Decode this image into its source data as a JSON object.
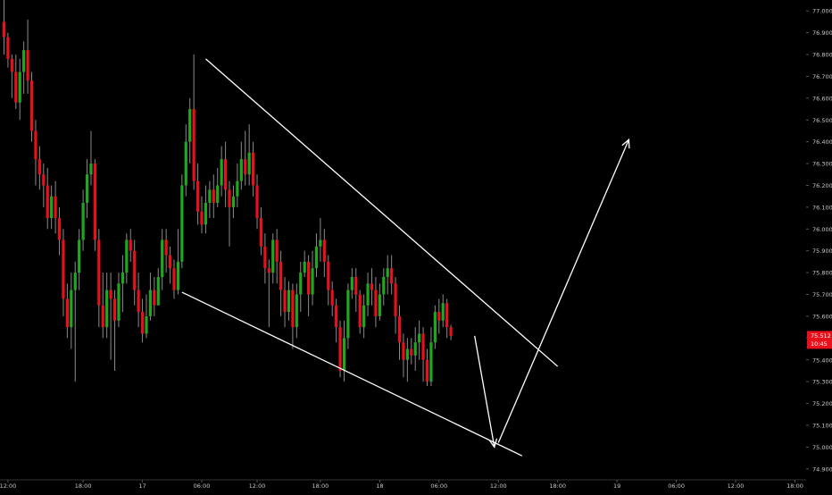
{
  "colors": {
    "background": "#000000",
    "up": "#1fa81f",
    "down": "#e8101a",
    "wick": "#8a8a8a",
    "axis_text": "#c8c8c8",
    "drawing": "#ffffff",
    "price_tag": "#e8101a"
  },
  "chart_data": {
    "type": "candlestick",
    "instrument": "",
    "y_axis": {
      "ylim": [
        74.85,
        77.05
      ],
      "ticks": [
        "77.000",
        "76.900",
        "76.800",
        "76.700",
        "76.600",
        "76.500",
        "76.400",
        "76.300",
        "76.200",
        "76.100",
        "76.000",
        "75.900",
        "75.800",
        "75.700",
        "75.600",
        "75.500",
        "75.400",
        "75.300",
        "75.200",
        "75.100",
        "75.000",
        "74.900"
      ]
    },
    "x_axis": {
      "ticks": [
        {
          "label": "12:00",
          "bar": 1
        },
        {
          "label": "18:00",
          "bar": 20
        },
        {
          "label": "17",
          "bar": 35
        },
        {
          "label": "06:00",
          "bar": 50
        },
        {
          "label": "12:00",
          "bar": 64
        },
        {
          "label": "18:00",
          "bar": 80
        },
        {
          "label": "18",
          "bar": 95
        },
        {
          "label": "06:00",
          "bar": 110
        },
        {
          "label": "12:00",
          "bar": 125
        },
        {
          "label": "18:00",
          "bar": 140
        },
        {
          "label": "19",
          "bar": 155
        },
        {
          "label": "06:00",
          "bar": 170
        },
        {
          "label": "12:00",
          "bar": 185
        },
        {
          "label": "18:00",
          "bar": 200
        }
      ]
    },
    "last_price": {
      "value": 75.512,
      "label": "75.512",
      "countdown": "10:45"
    },
    "candles": [
      [
        76.95,
        76.88,
        77.05,
        76.8
      ],
      [
        76.88,
        76.78,
        76.9,
        76.74
      ],
      [
        76.78,
        76.72,
        76.8,
        76.6
      ],
      [
        76.72,
        76.58,
        76.8,
        76.55
      ],
      [
        76.58,
        76.72,
        76.78,
        76.5
      ],
      [
        76.72,
        76.82,
        76.86,
        76.62
      ],
      [
        76.82,
        76.68,
        76.96,
        76.62
      ],
      [
        76.68,
        76.45,
        76.72,
        76.4
      ],
      [
        76.45,
        76.32,
        76.5,
        76.2
      ],
      [
        76.32,
        76.25,
        76.38,
        76.18
      ],
      [
        76.25,
        76.2,
        76.3,
        76.1
      ],
      [
        76.2,
        76.05,
        76.28,
        76.0
      ],
      [
        76.05,
        76.15,
        76.2,
        76.0
      ],
      [
        76.15,
        76.05,
        76.22,
        75.98
      ],
      [
        76.05,
        75.95,
        76.1,
        75.88
      ],
      [
        75.95,
        75.68,
        76.0,
        75.6
      ],
      [
        75.68,
        75.55,
        75.75,
        75.5
      ],
      [
        75.55,
        75.72,
        75.8,
        75.45
      ],
      [
        75.72,
        75.8,
        75.85,
        75.3
      ],
      [
        75.8,
        75.95,
        76.0,
        75.72
      ],
      [
        75.95,
        76.12,
        76.18,
        75.9
      ],
      [
        76.12,
        76.25,
        76.32,
        76.05
      ],
      [
        76.25,
        76.3,
        76.45,
        76.2
      ],
      [
        76.3,
        75.95,
        76.32,
        75.9
      ],
      [
        75.95,
        75.65,
        76.0,
        75.55
      ],
      [
        75.65,
        75.55,
        75.8,
        75.5
      ],
      [
        75.55,
        75.72,
        75.8,
        75.5
      ],
      [
        75.72,
        75.68,
        75.8,
        75.4
      ],
      [
        75.68,
        75.58,
        75.72,
        75.35
      ],
      [
        75.58,
        75.75,
        75.8,
        75.55
      ],
      [
        75.75,
        75.8,
        75.88,
        75.62
      ],
      [
        75.8,
        75.95,
        75.98,
        75.75
      ],
      [
        75.95,
        75.9,
        76.0,
        75.85
      ],
      [
        75.9,
        75.72,
        75.95,
        75.65
      ],
      [
        75.72,
        75.62,
        75.8,
        75.55
      ],
      [
        75.62,
        75.52,
        75.68,
        75.48
      ],
      [
        75.52,
        75.6,
        75.7,
        75.5
      ],
      [
        75.6,
        75.72,
        75.8,
        75.58
      ],
      [
        75.72,
        75.65,
        75.78,
        75.6
      ],
      [
        75.65,
        75.78,
        75.82,
        75.7
      ],
      [
        75.78,
        75.95,
        76.0,
        75.72
      ],
      [
        75.95,
        75.88,
        76.0,
        75.8
      ],
      [
        75.88,
        75.82,
        75.92,
        75.75
      ],
      [
        75.82,
        75.72,
        75.86,
        75.68
      ],
      [
        75.72,
        75.85,
        76.0,
        75.7
      ],
      [
        75.85,
        76.2,
        76.25,
        75.82
      ],
      [
        76.2,
        76.4,
        76.48,
        76.15
      ],
      [
        76.4,
        76.55,
        76.6,
        76.3
      ],
      [
        76.55,
        76.22,
        76.8,
        76.18
      ],
      [
        76.22,
        76.08,
        76.3,
        76.02
      ],
      [
        76.08,
        76.02,
        76.15,
        75.98
      ],
      [
        76.02,
        76.12,
        76.2,
        75.98
      ],
      [
        76.12,
        76.18,
        76.22,
        76.05
      ],
      [
        76.18,
        76.12,
        76.25,
        76.05
      ],
      [
        76.12,
        76.2,
        76.28,
        76.1
      ],
      [
        76.2,
        76.32,
        76.38,
        76.15
      ],
      [
        76.32,
        76.18,
        76.4,
        76.1
      ],
      [
        76.18,
        76.1,
        76.22,
        75.92
      ],
      [
        76.1,
        76.15,
        76.2,
        76.05
      ],
      [
        76.15,
        76.22,
        76.3,
        76.1
      ],
      [
        76.22,
        76.32,
        76.4,
        76.18
      ],
      [
        76.32,
        76.25,
        76.45,
        76.2
      ],
      [
        76.25,
        76.35,
        76.48,
        76.2
      ],
      [
        76.35,
        76.2,
        76.4,
        76.15
      ],
      [
        76.2,
        76.05,
        76.25,
        76.0
      ],
      [
        76.05,
        75.92,
        76.1,
        75.88
      ],
      [
        75.92,
        75.82,
        75.98,
        75.75
      ],
      [
        75.82,
        75.8,
        75.86,
        75.55
      ],
      [
        75.8,
        75.95,
        75.98,
        75.75
      ],
      [
        75.95,
        75.85,
        76.0,
        75.75
      ],
      [
        75.85,
        75.72,
        75.9,
        75.6
      ],
      [
        75.72,
        75.62,
        75.78,
        75.55
      ],
      [
        75.62,
        75.72,
        75.76,
        75.58
      ],
      [
        75.72,
        75.55,
        75.75,
        75.45
      ],
      [
        75.55,
        75.7,
        75.75,
        75.5
      ],
      [
        75.7,
        75.8,
        75.85,
        75.62
      ],
      [
        75.8,
        75.85,
        75.9,
        75.78
      ],
      [
        75.85,
        75.7,
        75.88,
        75.6
      ],
      [
        75.7,
        75.82,
        75.9,
        75.65
      ],
      [
        75.82,
        75.92,
        75.98,
        75.78
      ],
      [
        75.92,
        75.95,
        76.05,
        75.85
      ],
      [
        75.95,
        75.85,
        76.0,
        75.78
      ],
      [
        75.85,
        75.72,
        75.88,
        75.65
      ],
      [
        75.72,
        75.65,
        75.76,
        75.6
      ],
      [
        75.65,
        75.55,
        75.68,
        75.48
      ],
      [
        75.55,
        75.35,
        75.58,
        75.32
      ],
      [
        75.35,
        75.5,
        75.58,
        75.3
      ],
      [
        75.5,
        75.72,
        75.75,
        75.45
      ],
      [
        75.72,
        75.78,
        75.82,
        75.68
      ],
      [
        75.78,
        75.7,
        75.82,
        75.62
      ],
      [
        75.7,
        75.55,
        75.72,
        75.52
      ],
      [
        75.55,
        75.65,
        75.7,
        75.5
      ],
      [
        75.65,
        75.75,
        75.8,
        75.6
      ],
      [
        75.75,
        75.72,
        75.82,
        75.65
      ],
      [
        75.72,
        75.6,
        75.78,
        75.55
      ],
      [
        75.6,
        75.7,
        75.75,
        75.58
      ],
      [
        75.7,
        75.78,
        75.82,
        75.65
      ],
      [
        75.78,
        75.82,
        75.88,
        75.7
      ],
      [
        75.82,
        75.75,
        75.88,
        75.7
      ],
      [
        75.75,
        75.6,
        75.78,
        75.52
      ],
      [
        75.6,
        75.48,
        75.65,
        75.4
      ],
      [
        75.48,
        75.4,
        75.52,
        75.32
      ],
      [
        75.4,
        75.45,
        75.5,
        75.3
      ],
      [
        75.45,
        75.42,
        75.5,
        75.38
      ],
      [
        75.42,
        75.48,
        75.55,
        75.35
      ],
      [
        75.48,
        75.52,
        75.58,
        75.4
      ],
      [
        75.52,
        75.4,
        75.55,
        75.3
      ],
      [
        75.4,
        75.3,
        75.45,
        75.28
      ],
      [
        75.3,
        75.48,
        75.55,
        75.28
      ],
      [
        75.48,
        75.62,
        75.65,
        75.45
      ],
      [
        75.62,
        75.58,
        75.68,
        75.52
      ],
      [
        75.58,
        75.66,
        75.7,
        75.55
      ],
      [
        75.66,
        75.55,
        75.68,
        75.5
      ],
      [
        75.55,
        75.51,
        75.56,
        75.49
      ]
    ]
  },
  "drawings": {
    "upper_trendline": [
      [
        51,
        76.78
      ],
      [
        140,
        75.37
      ]
    ],
    "lower_trendline": [
      [
        45,
        75.71
      ],
      [
        131,
        74.96
      ]
    ],
    "arrow_down": [
      [
        119,
        75.51
      ],
      [
        124,
        75.0
      ]
    ],
    "arrow_up": [
      [
        125,
        75.02
      ],
      [
        158,
        76.41
      ]
    ]
  }
}
